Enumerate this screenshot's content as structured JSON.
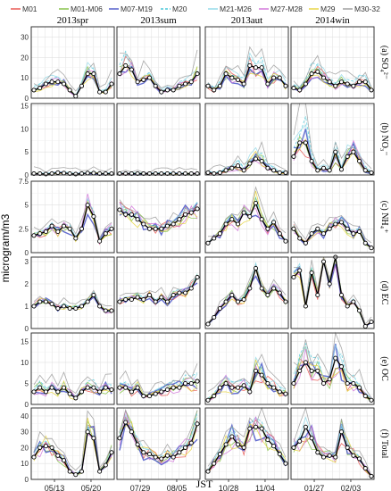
{
  "legend": [
    {
      "name": "M01",
      "color": "#e8504a",
      "dash": ""
    },
    {
      "name": "M01-M06",
      "color": "#7fbf3f",
      "dash": ""
    },
    {
      "name": "M07-M19",
      "color": "#4a55c8",
      "dash": ""
    },
    {
      "name": "M20",
      "color": "#49c7d8",
      "dash": "3,2"
    },
    {
      "name": "M21-M26",
      "color": "#8fd8e8",
      "dash": ""
    },
    {
      "name": "M27-M28",
      "color": "#d070d8",
      "dash": ""
    },
    {
      "name": "M29",
      "color": "#e6d23a",
      "dash": ""
    },
    {
      "name": "M30-32",
      "color": "#9a9a9a",
      "dash": ""
    }
  ],
  "observation_color": "#000000",
  "seasons": [
    "2013spr",
    "2013sum",
    "2013aut",
    "2014win"
  ],
  "panel_labels": [
    "(a) SO₄²⁻",
    "(b) NO₃⁻",
    "(c) NH₄⁺",
    "(d) EC",
    "(e) OC",
    "(f) Total"
  ],
  "ylabel": "microgram/m3",
  "xlabel": "JST",
  "chart_data": {
    "type": "line",
    "x_ticks": [
      [
        "05/13",
        "05/20"
      ],
      [
        "07/29",
        "08/05"
      ],
      [
        "10/28",
        "11/04"
      ],
      [
        "01/27",
        "02/03"
      ]
    ],
    "rows": [
      {
        "yticks": [
          0,
          10,
          20,
          30
        ],
        "ylim": [
          0,
          35
        ],
        "obs": [
          [
            4,
            5,
            7,
            8,
            8,
            7,
            4,
            1,
            6,
            12,
            12,
            3,
            3,
            7
          ],
          [
            12,
            16,
            14,
            8,
            9,
            10,
            6,
            3,
            4,
            4,
            6,
            7,
            8,
            12
          ],
          [
            6,
            4,
            6,
            12,
            10,
            9,
            7,
            16,
            15,
            15,
            7,
            10,
            10,
            6
          ],
          [
            5,
            4,
            7,
            12,
            13,
            10,
            8,
            6,
            8,
            7,
            6,
            8,
            8,
            4
          ]
        ],
        "sim_spread": 0.3,
        "grey_up": 1.8
      },
      {
        "yticks": [
          0,
          5,
          10,
          15
        ],
        "ylim": [
          0,
          15.5
        ],
        "obs": [
          [
            0.3,
            0.3,
            0.2,
            0.3,
            0.5,
            0.4,
            0.3,
            0.2,
            0.3,
            0.4,
            0.4,
            0.3,
            0.3,
            0.3
          ],
          [
            0.3,
            0.3,
            0.3,
            0.3,
            0.3,
            0.3,
            0.3,
            0.3,
            0.3,
            0.3,
            0.3,
            0.3,
            0.3,
            0.3
          ],
          [
            0.5,
            0.3,
            0.5,
            1,
            1.5,
            2,
            1,
            2.5,
            3.5,
            3,
            1.5,
            1,
            0.5,
            0.5
          ],
          [
            4,
            7,
            7,
            3,
            1,
            1.5,
            1,
            5,
            1.2,
            4,
            5,
            3,
            1,
            0.5
          ]
        ],
        "sim_spread": 0.5,
        "grey_up": 2.5
      },
      {
        "yticks": [
          0,
          2.5,
          5,
          7.5
        ],
        "ylim": [
          0,
          7.5
        ],
        "obs": [
          [
            1.8,
            2,
            2.2,
            2.8,
            2.2,
            2.8,
            2.5,
            1.5,
            2.5,
            5,
            3.8,
            1.2,
            2,
            2.5
          ],
          [
            4.5,
            4,
            4,
            3.5,
            3,
            2.5,
            2.5,
            2.5,
            2.8,
            3,
            3.5,
            4,
            4.2,
            4.6
          ],
          [
            1,
            1.5,
            2,
            3,
            3.5,
            3,
            4.2,
            3.8,
            5.2,
            3.5,
            2.5,
            3.2,
            2,
            1.2
          ],
          [
            2.5,
            1.5,
            1,
            2,
            2.5,
            2,
            2.5,
            3,
            3.2,
            2.5,
            2,
            2.2,
            1,
            0.5
          ]
        ],
        "sim_spread": 0.25,
        "grey_up": 1.3
      },
      {
        "yticks": [
          0,
          1,
          2,
          3
        ],
        "ylim": [
          0,
          3.2
        ],
        "obs": [
          [
            1,
            1.2,
            1.2,
            1.1,
            0.9,
            1,
            0.9,
            0.9,
            1,
            1.2,
            1.5,
            1,
            0.8,
            0.8
          ],
          [
            1.2,
            1.3,
            1.3,
            1.4,
            1.3,
            1.5,
            1.2,
            1.4,
            1.2,
            1.5,
            1.6,
            1.6,
            1.8,
            2.3
          ],
          [
            0.2,
            0.5,
            0.9,
            1.2,
            1.5,
            1.2,
            1.3,
            1.8,
            2.7,
            1.8,
            1.5,
            1.8,
            1.6,
            1.2
          ],
          [
            2.3,
            2.6,
            1,
            2.5,
            1.5,
            3,
            2,
            3.2,
            1.5,
            1,
            1.2,
            0.8,
            0.1,
            0.3
          ]
        ],
        "sim_spread": 0.15,
        "grey_up": 1.2
      },
      {
        "yticks": [
          0,
          5,
          10,
          15
        ],
        "ylim": [
          0,
          17
        ],
        "obs": [
          [
            3,
            4,
            3,
            4,
            3,
            4,
            2.5,
            1.5,
            3,
            4,
            4,
            3,
            4,
            3.5
          ],
          [
            4,
            4,
            3,
            4,
            2,
            2,
            2.5,
            3,
            3.5,
            4,
            4,
            5,
            5,
            5.5
          ],
          [
            1,
            2,
            4,
            5,
            4,
            4,
            4.5,
            3,
            8,
            7,
            5,
            4,
            3,
            2.5
          ],
          [
            5,
            8,
            10,
            8,
            8,
            5,
            6,
            11,
            9,
            5,
            5,
            4,
            2,
            1
          ]
        ],
        "sim_spread": 0.4,
        "grey_up": 1.8
      },
      {
        "yticks": [
          0,
          10,
          20,
          30,
          40
        ],
        "ylim": [
          0,
          45
        ],
        "obs": [
          [
            14,
            20,
            21,
            20,
            15,
            12,
            5,
            3,
            5,
            30,
            26,
            5,
            9,
            17
          ],
          [
            26,
            36,
            30,
            22,
            17,
            16,
            14,
            13,
            15,
            14,
            17,
            20,
            23,
            35
          ],
          [
            5,
            10,
            16,
            22,
            27,
            22,
            20,
            32,
            33,
            32,
            25,
            21,
            16,
            10
          ],
          [
            20,
            24,
            33,
            26,
            17,
            14,
            15,
            14,
            30,
            20,
            15,
            13,
            7,
            2
          ]
        ],
        "sim_spread": 0.3,
        "grey_up": 1.4
      }
    ]
  }
}
